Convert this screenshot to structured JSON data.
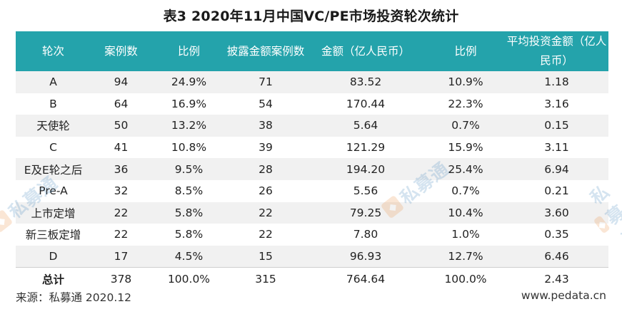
{
  "title": "表3  2020年11月中国VC/PE市场投资轮次统计",
  "table": {
    "headers": [
      "轮次",
      "案例数",
      "比例",
      "披露金额案例数",
      "金额（亿人民币）",
      "比例",
      "平均投资金额（亿人民币）"
    ],
    "rows": [
      [
        "A",
        "94",
        "24.9%",
        "71",
        "83.52",
        "10.9%",
        "1.18"
      ],
      [
        "B",
        "64",
        "16.9%",
        "54",
        "170.44",
        "22.3%",
        "3.16"
      ],
      [
        "天使轮",
        "50",
        "13.2%",
        "38",
        "5.64",
        "0.7%",
        "0.15"
      ],
      [
        "C",
        "41",
        "10.8%",
        "39",
        "121.29",
        "15.9%",
        "3.11"
      ],
      [
        "E及E轮之后",
        "36",
        "9.5%",
        "28",
        "194.20",
        "25.4%",
        "6.94"
      ],
      [
        "Pre-A",
        "32",
        "8.5%",
        "26",
        "5.56",
        "0.7%",
        "0.21"
      ],
      [
        "上市定增",
        "22",
        "5.8%",
        "22",
        "79.25",
        "10.4%",
        "3.60"
      ],
      [
        "新三板定增",
        "22",
        "5.8%",
        "22",
        "7.80",
        "1.0%",
        "0.35"
      ],
      [
        "D",
        "17",
        "4.5%",
        "15",
        "96.93",
        "12.7%",
        "6.46"
      ]
    ],
    "total": [
      "总计",
      "378",
      "100.0%",
      "315",
      "764.64",
      "100.0%",
      "2.43"
    ]
  },
  "watermark": {
    "text": "私募通",
    "logo_icon": "pedata-logo-icon",
    "logo_color": "#e87a1e",
    "text_color": "#1f6fb0"
  },
  "footer": {
    "source": "来源：私募通 2020.12",
    "website": "www.pedata.cn"
  },
  "colors": {
    "header_bg": "#24a3ab",
    "header_text": "#ffffff",
    "row_stripe": "#f1f1f1"
  }
}
